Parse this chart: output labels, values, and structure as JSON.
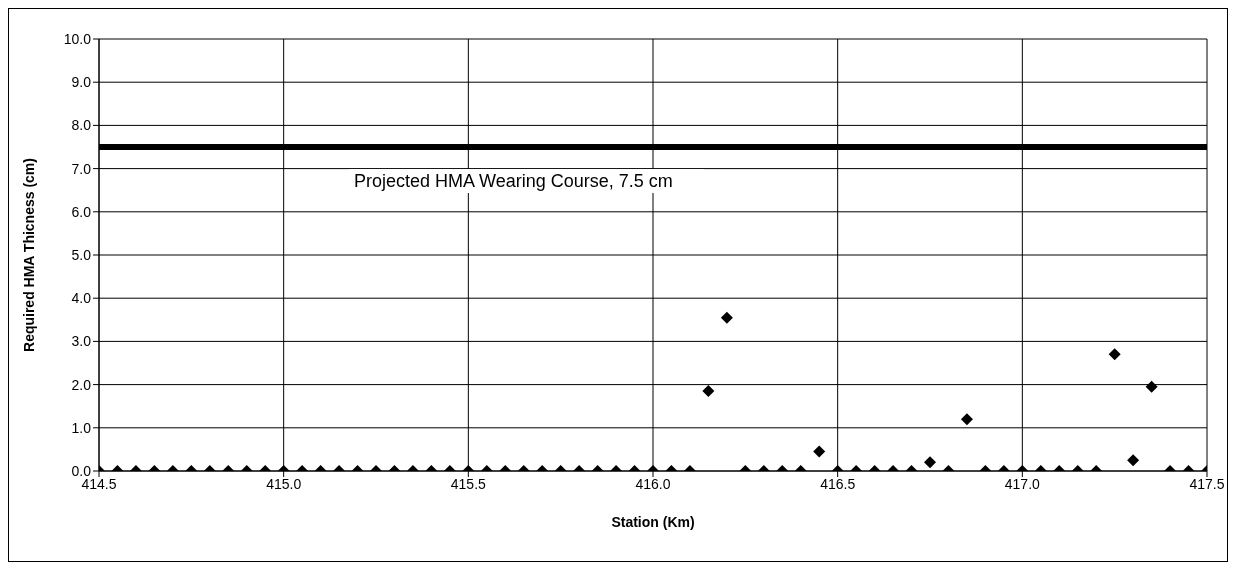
{
  "chart_data": {
    "type": "scatter",
    "xlabel": "Station (Km)",
    "ylabel": "Required HMA Thicness (cm)",
    "x": [
      414.5,
      414.55,
      414.6,
      414.65,
      414.7,
      414.75,
      414.8,
      414.85,
      414.9,
      414.95,
      415.0,
      415.05,
      415.1,
      415.15,
      415.2,
      415.25,
      415.3,
      415.35,
      415.4,
      415.45,
      415.5,
      415.55,
      415.6,
      415.65,
      415.7,
      415.75,
      415.8,
      415.85,
      415.9,
      415.95,
      416.0,
      416.05,
      416.1,
      416.15,
      416.2,
      416.25,
      416.3,
      416.35,
      416.4,
      416.45,
      416.5,
      416.55,
      416.6,
      416.65,
      416.7,
      416.75,
      416.8,
      416.85,
      416.9,
      416.95,
      417.0,
      417.05,
      417.1,
      417.15,
      417.2,
      417.25,
      417.3,
      417.35,
      417.4,
      417.45,
      417.5
    ],
    "series": [
      {
        "color": "#000000",
        "values": [
          0,
          0,
          0,
          0,
          0,
          0,
          0,
          0,
          0,
          0,
          0,
          0,
          0,
          0,
          0,
          0,
          0,
          0,
          0,
          0,
          0,
          0,
          0,
          0,
          0,
          0,
          0,
          0,
          0,
          0,
          0,
          0,
          0,
          1.85,
          3.55,
          0,
          0,
          0,
          0,
          0.45,
          0,
          0,
          0,
          0,
          0,
          0.2,
          0,
          1.2,
          0,
          0,
          0,
          0,
          0,
          0,
          0,
          2.7,
          0.25,
          1.95,
          0,
          0,
          0
        ]
      }
    ],
    "marker": "diamond",
    "grid": true,
    "xlim": [
      414.5,
      417.5
    ],
    "xticks": [
      {
        "value": 414.5,
        "label": "414.5"
      },
      {
        "value": 415,
        "label": "415.0"
      },
      {
        "value": 415.5,
        "label": "415.5"
      },
      {
        "value": 416,
        "label": "416.0"
      },
      {
        "value": 416.5,
        "label": "416.5"
      },
      {
        "value": 417,
        "label": "417.0"
      },
      {
        "value": 417.5,
        "label": "417.5"
      }
    ],
    "ylim": [
      0,
      10
    ],
    "yticks": [
      {
        "value": 0,
        "label": "0.0"
      },
      {
        "value": 1,
        "label": "1.0"
      },
      {
        "value": 2,
        "label": "2.0"
      },
      {
        "value": 3,
        "label": "3.0"
      },
      {
        "value": 4,
        "label": "4.0"
      },
      {
        "value": 5,
        "label": "5.0"
      },
      {
        "value": 6,
        "label": "6.0"
      },
      {
        "value": 7,
        "label": "7.0"
      },
      {
        "value": 8,
        "label": "8.0"
      },
      {
        "value": 9,
        "label": "9.0"
      },
      {
        "value": 10,
        "label": "10.0"
      }
    ],
    "ref_lines": [
      {
        "axis": "y",
        "value": 7.5,
        "label": "Projected HMA Wearing Course, 7.5 cm",
        "color": "#000000"
      }
    ]
  }
}
